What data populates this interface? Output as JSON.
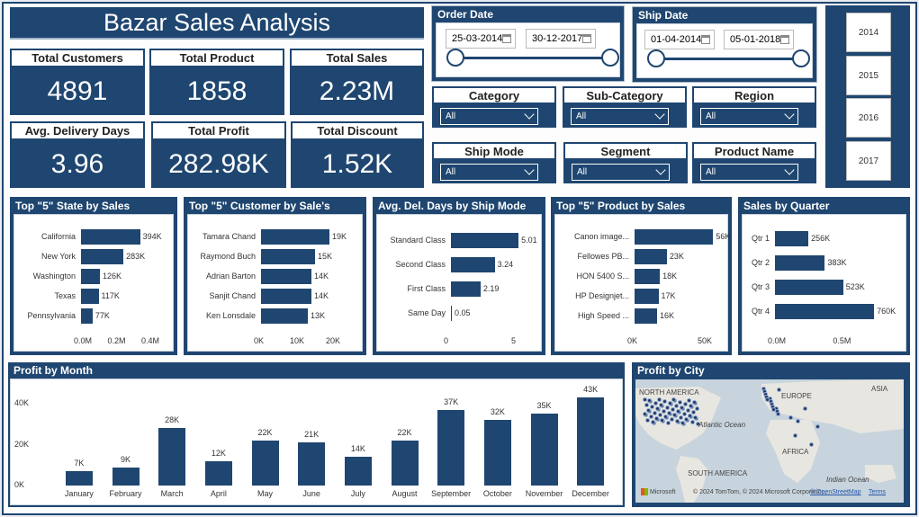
{
  "title": "Bazar Sales Analysis",
  "kpis": {
    "total_customers": {
      "label": "Total Customers",
      "value": "4891"
    },
    "total_product": {
      "label": "Total Product",
      "value": "1858"
    },
    "total_sales": {
      "label": "Total Sales",
      "value": "2.23M"
    },
    "avg_delivery": {
      "label": "Avg. Delivery Days",
      "value": "3.96"
    },
    "total_profit": {
      "label": "Total Profit",
      "value": "282.98K"
    },
    "total_discount": {
      "label": "Total Discount",
      "value": "1.52K"
    }
  },
  "order_date": {
    "label": "Order Date",
    "from": "25-03-2014",
    "to": "30-12-2017"
  },
  "ship_date": {
    "label": "Ship Date",
    "from": "01-04-2014",
    "to": "05-01-2018"
  },
  "filters": {
    "category": {
      "label": "Category",
      "value": "All"
    },
    "subcategory": {
      "label": "Sub-Category",
      "value": "All"
    },
    "region": {
      "label": "Region",
      "value": "All"
    },
    "ship_mode": {
      "label": "Ship Mode",
      "value": "All"
    },
    "segment": {
      "label": "Segment",
      "value": "All"
    },
    "product_name": {
      "label": "Product Name",
      "value": "All"
    }
  },
  "years": [
    "2014",
    "2015",
    "2016",
    "2017"
  ],
  "icons": {
    "calendar": "calendar-icon",
    "chevron": "chevron-down-icon",
    "microsoft": "microsoft-logo"
  },
  "colors": {
    "accent": "#1f4670",
    "map_water": "#c7d4dd"
  },
  "chart_data": [
    {
      "type": "bar",
      "orientation": "horizontal",
      "title": "Top \"5\" State by Sales",
      "categories": [
        "California",
        "New York",
        "Washington",
        "Texas",
        "Pennsylvania"
      ],
      "values": [
        394,
        283,
        126,
        117,
        77
      ],
      "value_labels": [
        "394K",
        "283K",
        "126K",
        "117K",
        "77K"
      ],
      "xticks": [
        "0.0M",
        "0.2M",
        "0.4M"
      ],
      "xlim": [
        0,
        450
      ]
    },
    {
      "type": "bar",
      "orientation": "horizontal",
      "title": "Top \"5\" Customer by Sale's",
      "categories": [
        "Tamara Chand",
        "Raymond Buch",
        "Adrian Barton",
        "Sanjit Chand",
        "Ken Lonsdale"
      ],
      "values": [
        19,
        15,
        14,
        14,
        13
      ],
      "value_labels": [
        "19K",
        "15K",
        "14K",
        "14K",
        "13K"
      ],
      "xticks": [
        "0K",
        "10K",
        "20K"
      ],
      "xlim": [
        0,
        20
      ]
    },
    {
      "type": "bar",
      "orientation": "horizontal",
      "title": "Avg. Del. Days by Ship Mode",
      "categories": [
        "Standard Class",
        "Second Class",
        "First Class",
        "Same Day"
      ],
      "values": [
        5.01,
        3.24,
        2.19,
        0.05
      ],
      "value_labels": [
        "5.01",
        "3.24",
        "2.19",
        "0.05"
      ],
      "xticks": [
        "0",
        "5"
      ],
      "xlim": [
        0,
        5
      ]
    },
    {
      "type": "bar",
      "orientation": "horizontal",
      "title": "Top \"5\" Product by Sales",
      "categories": [
        "Canon image...",
        "Fellowes PB...",
        "HON 5400 S...",
        "HP Designjet...",
        "High Speed ..."
      ],
      "values": [
        56,
        23,
        18,
        17,
        16
      ],
      "value_labels": [
        "56K",
        "23K",
        "18K",
        "17K",
        "16K"
      ],
      "xticks": [
        "0K",
        "50K"
      ],
      "xlim": [
        0,
        50
      ]
    },
    {
      "type": "bar",
      "orientation": "horizontal",
      "title": "Sales by Quarter",
      "categories": [
        "Qtr 1",
        "Qtr 2",
        "Qtr 3",
        "Qtr 4"
      ],
      "values": [
        256,
        383,
        523,
        760
      ],
      "value_labels": [
        "256K",
        "383K",
        "523K",
        "760K"
      ],
      "xticks": [
        "0.0M",
        "0.5M"
      ],
      "xlim": [
        0,
        780
      ]
    },
    {
      "type": "bar",
      "title": "Profit by Month",
      "categories": [
        "January",
        "February",
        "March",
        "April",
        "May",
        "June",
        "July",
        "August",
        "September",
        "October",
        "November",
        "December"
      ],
      "values": [
        7,
        9,
        28,
        12,
        22,
        21,
        14,
        22,
        37,
        32,
        35,
        43
      ],
      "value_labels": [
        "7K",
        "9K",
        "28K",
        "12K",
        "22K",
        "21K",
        "14K",
        "22K",
        "37K",
        "32K",
        "35K",
        "43K"
      ],
      "yticks": [
        "0K",
        "20K",
        "40K"
      ],
      "ylim": [
        0,
        44
      ]
    }
  ],
  "map": {
    "title": "Profit by City",
    "labels": [
      "NORTH AMERICA",
      "EUROPE",
      "ASIA",
      "Atlantic Ocean",
      "AFRICA",
      "SOUTH AMERICA",
      "Indian Ocean"
    ],
    "credit": "Microsoft",
    "attribution": "© 2024 TomTom, © 2024 Microsoft Corporation,",
    "osm": "© OpenStreetMap",
    "terms": "Terms"
  }
}
